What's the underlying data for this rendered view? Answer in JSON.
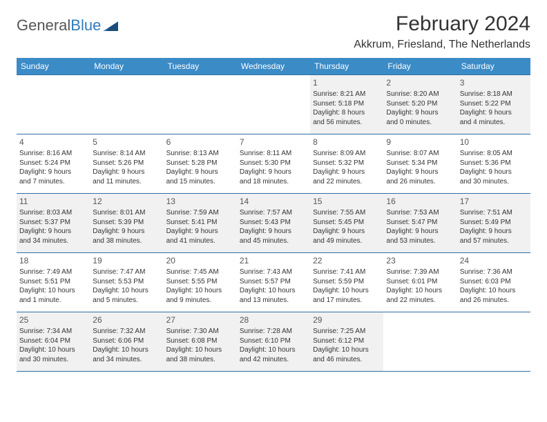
{
  "logo": {
    "part1": "General",
    "part2": "Blue"
  },
  "title": "February 2024",
  "location": "Akkrum, Friesland, The Netherlands",
  "colors": {
    "header_bg": "#3b8bc7",
    "header_text": "#ffffff",
    "border": "#2f6da3",
    "shaded_bg": "#f1f1f1",
    "body_bg": "#ffffff",
    "text": "#333333",
    "logo_gray": "#555555",
    "logo_blue": "#2f7bbf"
  },
  "typography": {
    "title_fontsize": 30,
    "location_fontsize": 16,
    "header_fontsize": 12,
    "daynum_fontsize": 12,
    "cell_fontsize": 10
  },
  "weekdays": [
    "Sunday",
    "Monday",
    "Tuesday",
    "Wednesday",
    "Thursday",
    "Friday",
    "Saturday"
  ],
  "weeks": [
    [
      null,
      null,
      null,
      null,
      {
        "n": "1",
        "sr": "Sunrise: 8:21 AM",
        "ss": "Sunset: 5:18 PM",
        "d1": "Daylight: 8 hours",
        "d2": "and 56 minutes."
      },
      {
        "n": "2",
        "sr": "Sunrise: 8:20 AM",
        "ss": "Sunset: 5:20 PM",
        "d1": "Daylight: 9 hours",
        "d2": "and 0 minutes."
      },
      {
        "n": "3",
        "sr": "Sunrise: 8:18 AM",
        "ss": "Sunset: 5:22 PM",
        "d1": "Daylight: 9 hours",
        "d2": "and 4 minutes."
      }
    ],
    [
      {
        "n": "4",
        "sr": "Sunrise: 8:16 AM",
        "ss": "Sunset: 5:24 PM",
        "d1": "Daylight: 9 hours",
        "d2": "and 7 minutes."
      },
      {
        "n": "5",
        "sr": "Sunrise: 8:14 AM",
        "ss": "Sunset: 5:26 PM",
        "d1": "Daylight: 9 hours",
        "d2": "and 11 minutes."
      },
      {
        "n": "6",
        "sr": "Sunrise: 8:13 AM",
        "ss": "Sunset: 5:28 PM",
        "d1": "Daylight: 9 hours",
        "d2": "and 15 minutes."
      },
      {
        "n": "7",
        "sr": "Sunrise: 8:11 AM",
        "ss": "Sunset: 5:30 PM",
        "d1": "Daylight: 9 hours",
        "d2": "and 18 minutes."
      },
      {
        "n": "8",
        "sr": "Sunrise: 8:09 AM",
        "ss": "Sunset: 5:32 PM",
        "d1": "Daylight: 9 hours",
        "d2": "and 22 minutes."
      },
      {
        "n": "9",
        "sr": "Sunrise: 8:07 AM",
        "ss": "Sunset: 5:34 PM",
        "d1": "Daylight: 9 hours",
        "d2": "and 26 minutes."
      },
      {
        "n": "10",
        "sr": "Sunrise: 8:05 AM",
        "ss": "Sunset: 5:36 PM",
        "d1": "Daylight: 9 hours",
        "d2": "and 30 minutes."
      }
    ],
    [
      {
        "n": "11",
        "sr": "Sunrise: 8:03 AM",
        "ss": "Sunset: 5:37 PM",
        "d1": "Daylight: 9 hours",
        "d2": "and 34 minutes."
      },
      {
        "n": "12",
        "sr": "Sunrise: 8:01 AM",
        "ss": "Sunset: 5:39 PM",
        "d1": "Daylight: 9 hours",
        "d2": "and 38 minutes."
      },
      {
        "n": "13",
        "sr": "Sunrise: 7:59 AM",
        "ss": "Sunset: 5:41 PM",
        "d1": "Daylight: 9 hours",
        "d2": "and 41 minutes."
      },
      {
        "n": "14",
        "sr": "Sunrise: 7:57 AM",
        "ss": "Sunset: 5:43 PM",
        "d1": "Daylight: 9 hours",
        "d2": "and 45 minutes."
      },
      {
        "n": "15",
        "sr": "Sunrise: 7:55 AM",
        "ss": "Sunset: 5:45 PM",
        "d1": "Daylight: 9 hours",
        "d2": "and 49 minutes."
      },
      {
        "n": "16",
        "sr": "Sunrise: 7:53 AM",
        "ss": "Sunset: 5:47 PM",
        "d1": "Daylight: 9 hours",
        "d2": "and 53 minutes."
      },
      {
        "n": "17",
        "sr": "Sunrise: 7:51 AM",
        "ss": "Sunset: 5:49 PM",
        "d1": "Daylight: 9 hours",
        "d2": "and 57 minutes."
      }
    ],
    [
      {
        "n": "18",
        "sr": "Sunrise: 7:49 AM",
        "ss": "Sunset: 5:51 PM",
        "d1": "Daylight: 10 hours",
        "d2": "and 1 minute."
      },
      {
        "n": "19",
        "sr": "Sunrise: 7:47 AM",
        "ss": "Sunset: 5:53 PM",
        "d1": "Daylight: 10 hours",
        "d2": "and 5 minutes."
      },
      {
        "n": "20",
        "sr": "Sunrise: 7:45 AM",
        "ss": "Sunset: 5:55 PM",
        "d1": "Daylight: 10 hours",
        "d2": "and 9 minutes."
      },
      {
        "n": "21",
        "sr": "Sunrise: 7:43 AM",
        "ss": "Sunset: 5:57 PM",
        "d1": "Daylight: 10 hours",
        "d2": "and 13 minutes."
      },
      {
        "n": "22",
        "sr": "Sunrise: 7:41 AM",
        "ss": "Sunset: 5:59 PM",
        "d1": "Daylight: 10 hours",
        "d2": "and 17 minutes."
      },
      {
        "n": "23",
        "sr": "Sunrise: 7:39 AM",
        "ss": "Sunset: 6:01 PM",
        "d1": "Daylight: 10 hours",
        "d2": "and 22 minutes."
      },
      {
        "n": "24",
        "sr": "Sunrise: 7:36 AM",
        "ss": "Sunset: 6:03 PM",
        "d1": "Daylight: 10 hours",
        "d2": "and 26 minutes."
      }
    ],
    [
      {
        "n": "25",
        "sr": "Sunrise: 7:34 AM",
        "ss": "Sunset: 6:04 PM",
        "d1": "Daylight: 10 hours",
        "d2": "and 30 minutes."
      },
      {
        "n": "26",
        "sr": "Sunrise: 7:32 AM",
        "ss": "Sunset: 6:06 PM",
        "d1": "Daylight: 10 hours",
        "d2": "and 34 minutes."
      },
      {
        "n": "27",
        "sr": "Sunrise: 7:30 AM",
        "ss": "Sunset: 6:08 PM",
        "d1": "Daylight: 10 hours",
        "d2": "and 38 minutes."
      },
      {
        "n": "28",
        "sr": "Sunrise: 7:28 AM",
        "ss": "Sunset: 6:10 PM",
        "d1": "Daylight: 10 hours",
        "d2": "and 42 minutes."
      },
      {
        "n": "29",
        "sr": "Sunrise: 7:25 AM",
        "ss": "Sunset: 6:12 PM",
        "d1": "Daylight: 10 hours",
        "d2": "and 46 minutes."
      },
      null,
      null
    ]
  ]
}
